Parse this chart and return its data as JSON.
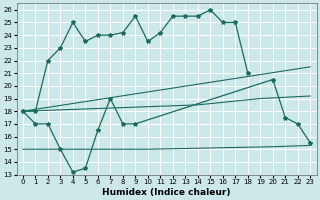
{
  "xlabel": "Humidex (Indice chaleur)",
  "bg_color": "#cce8e8",
  "grid_color": "#ffffff",
  "line_color": "#1a6b5e",
  "xlim": [
    -0.5,
    23.5
  ],
  "ylim": [
    13,
    26.5
  ],
  "yticks": [
    13,
    14,
    15,
    16,
    17,
    18,
    19,
    20,
    21,
    22,
    23,
    24,
    25,
    26
  ],
  "xticks": [
    0,
    1,
    2,
    3,
    4,
    5,
    6,
    7,
    8,
    9,
    10,
    11,
    12,
    13,
    14,
    15,
    16,
    17,
    18,
    19,
    20,
    21,
    22,
    23
  ],
  "line1_x": [
    0,
    1,
    2,
    3,
    4,
    5,
    6,
    7,
    8,
    9,
    10,
    11,
    12,
    13,
    14,
    15,
    16,
    17,
    18
  ],
  "line1_y": [
    18.0,
    18.0,
    22.0,
    23.0,
    25.0,
    23.5,
    24.0,
    24.0,
    24.2,
    25.5,
    23.5,
    24.2,
    25.5,
    25.5,
    25.5,
    26.0,
    25.0,
    25.0,
    21.0
  ],
  "line2_x": [
    0,
    1,
    2,
    3,
    4,
    5,
    6,
    7,
    8,
    9,
    20,
    21,
    22,
    23
  ],
  "line2_y": [
    18.0,
    17.0,
    17.0,
    15.0,
    13.2,
    13.5,
    16.5,
    19.0,
    17.0,
    17.0,
    20.5,
    17.5,
    17.0,
    15.5
  ],
  "line3_x": [
    0,
    23
  ],
  "line3_y": [
    18.0,
    21.5
  ],
  "line4_x": [
    0,
    14,
    19,
    23
  ],
  "line4_y": [
    18.0,
    18.5,
    19.0,
    19.2
  ],
  "line5_x": [
    0,
    10,
    20,
    23
  ],
  "line5_y": [
    15.0,
    15.0,
    15.2,
    15.3
  ]
}
